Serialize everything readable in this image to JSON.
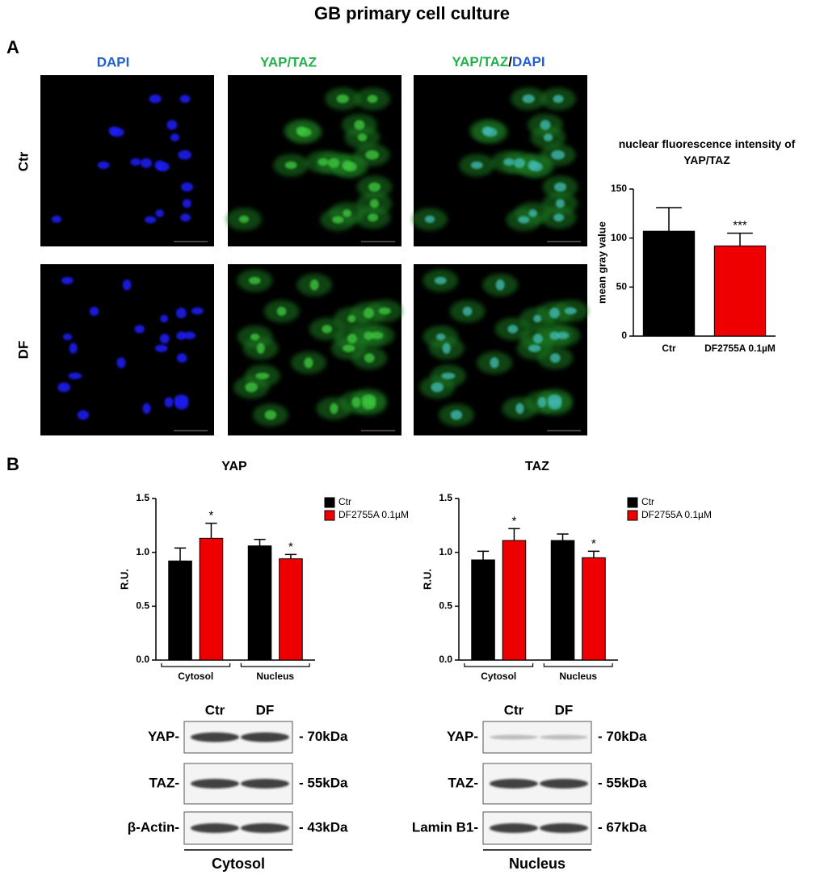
{
  "title": "GB primary cell culture",
  "panel_a": {
    "label": "A",
    "columns": [
      "DAPI",
      "YAP/TAZ"
    ],
    "merged_column": [
      "YAP/TAZ",
      "/",
      "DAPI"
    ],
    "rows": [
      "Ctr",
      "DF"
    ]
  },
  "chart_data": [
    {
      "type": "bar",
      "title": "nuclear fluorescence intensity of YAP/TAZ",
      "categories": [
        "Ctr",
        "DF2755A 0.1µM"
      ],
      "values": [
        107,
        92
      ],
      "errors": [
        24,
        13
      ],
      "colors": [
        "#000000",
        "#ee0000"
      ],
      "significance": [
        null,
        "***"
      ],
      "ylabel": "mean gray value",
      "ylim": [
        0,
        150
      ],
      "yticks": [
        0,
        50,
        100,
        150
      ]
    },
    {
      "type": "bar",
      "title": "YAP",
      "categories": [
        "Cytosol",
        "Nucleus"
      ],
      "series": [
        {
          "name": "Ctr",
          "color": "#000000",
          "values": [
            0.92,
            1.06
          ],
          "errors": [
            0.12,
            0.06
          ],
          "significance": [
            null,
            null
          ]
        },
        {
          "name": "DF2755A 0.1µM",
          "color": "#ee0000",
          "values": [
            1.13,
            0.94
          ],
          "errors": [
            0.14,
            0.04
          ],
          "significance": [
            "*",
            "*"
          ]
        }
      ],
      "ylabel": "R.U.",
      "ylim": [
        0,
        1.5
      ],
      "yticks": [
        {
          "value": 0,
          "label": "0.0"
        },
        {
          "value": 0.5,
          "label": "0.5"
        },
        {
          "value": 1,
          "label": "1.0"
        },
        {
          "value": 1.5,
          "label": "1.5"
        }
      ]
    },
    {
      "type": "bar",
      "title": "TAZ",
      "categories": [
        "Cytosol",
        "Nucleus"
      ],
      "series": [
        {
          "name": "Ctr",
          "color": "#000000",
          "values": [
            0.93,
            1.11
          ],
          "errors": [
            0.08,
            0.06
          ],
          "significance": [
            null,
            null
          ]
        },
        {
          "name": "DF2755A 0.1µM",
          "color": "#ee0000",
          "values": [
            1.11,
            0.95
          ],
          "errors": [
            0.11,
            0.06
          ],
          "significance": [
            "*",
            "*"
          ]
        }
      ],
      "ylabel": "R.U.",
      "ylim": [
        0,
        1.5
      ],
      "yticks": [
        {
          "value": 0,
          "label": "0.0"
        },
        {
          "value": 0.5,
          "label": "0.5"
        },
        {
          "value": 1,
          "label": "1.0"
        },
        {
          "value": 1.5,
          "label": "1.5"
        }
      ]
    }
  ],
  "panel_b": {
    "label": "B",
    "blots": [
      {
        "lanes": [
          "Ctr",
          "DF"
        ],
        "fraction": "Cytosol",
        "rows": [
          {
            "protein": "YAP-",
            "size": "- 70kDa"
          },
          {
            "protein": "TAZ-",
            "size": "- 55kDa"
          },
          {
            "protein": "β-Actin-",
            "size": "- 43kDa"
          }
        ]
      },
      {
        "lanes": [
          "Ctr",
          "DF"
        ],
        "fraction": "Nucleus",
        "rows": [
          {
            "protein": "YAP-",
            "size": "- 70kDa"
          },
          {
            "protein": "TAZ-",
            "size": "- 55kDa"
          },
          {
            "protein": "Lamin B1-",
            "size": "- 67kDa"
          }
        ]
      }
    ]
  }
}
